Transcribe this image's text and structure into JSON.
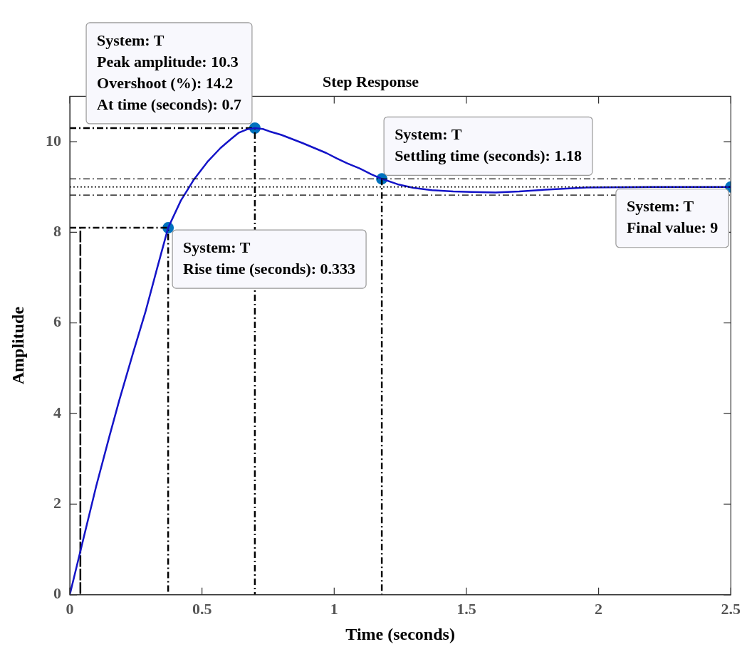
{
  "chart_data": {
    "type": "line",
    "title": "Step Response",
    "xlabel": "Time (seconds)",
    "ylabel": "Amplitude",
    "xlim": [
      0,
      2.5
    ],
    "xticks": [
      0,
      0.5,
      1,
      1.5,
      2,
      2.5
    ],
    "ylim": [
      0,
      11
    ],
    "yticks": [
      0,
      2,
      4,
      6,
      8,
      10
    ],
    "grid": false,
    "legend": false,
    "series": [
      {
        "color": "#1414c8",
        "marker": "none",
        "line_style": "solid",
        "x": [
          0,
          0.05,
          0.1,
          0.15,
          0.187,
          0.24,
          0.286,
          0.33,
          0.372,
          0.42,
          0.47,
          0.52,
          0.57,
          0.61,
          0.64,
          0.67,
          0.7,
          0.73,
          0.754,
          0.8,
          0.84,
          0.88,
          0.925,
          0.97,
          1.01,
          1.05,
          1.096,
          1.14,
          1.18,
          1.24,
          1.3,
          1.37,
          1.45,
          1.52,
          1.61,
          1.7,
          1.8,
          1.955,
          2.2,
          2.5
        ],
        "values": [
          0,
          1.2,
          2.4,
          3.5,
          4.29,
          5.35,
          6.24,
          7.2,
          8.1,
          8.7,
          9.17,
          9.55,
          9.86,
          10.06,
          10.2,
          10.27,
          10.3,
          10.28,
          10.23,
          10.15,
          10.06,
          9.97,
          9.86,
          9.75,
          9.63,
          9.52,
          9.41,
          9.28,
          9.18,
          9.06,
          8.98,
          8.93,
          8.9,
          8.89,
          8.88,
          8.9,
          8.94,
          8.99,
          9.0,
          9.0
        ]
      },
      {
        "type": "line",
        "color": "#000000",
        "marker": "none",
        "line_style": "dashed",
        "x": [
          0,
          0.04,
          0.04,
          0.04,
          0.372,
          0.372
        ],
        "values": [
          8.1,
          8.1,
          0,
          8.1,
          8.1,
          0
        ]
      },
      {
        "type": "line",
        "color": "#000000",
        "marker": "none",
        "line_style": "dashed",
        "x": [
          0,
          0.7,
          0.7
        ],
        "values": [
          10.3,
          10.3,
          0
        ]
      },
      {
        "type": "line",
        "color": "#000000",
        "marker": "none",
        "line_style": "dashed",
        "x": [
          1.18,
          1.18
        ],
        "values": [
          9.18,
          0
        ]
      },
      {
        "type": "scatter",
        "color": "#0072bd",
        "marker": "circle",
        "x": [
          0.372,
          0.7,
          1.18,
          2.5
        ],
        "values": [
          8.1,
          10.3,
          9.18,
          9.0
        ]
      }
    ],
    "ref_lines": [
      {
        "axis": "y",
        "value": 9.18,
        "color": "#000000",
        "line_style": "dashed"
      },
      {
        "axis": "y",
        "value": 9,
        "color": "#000000",
        "line_style": "dotted"
      },
      {
        "axis": "y",
        "value": 8.82,
        "color": "#000000",
        "line_style": "dashed"
      }
    ],
    "annotations": [
      {
        "text": "System: T\nRise time (seconds): 0.333",
        "x": 0.372,
        "y": 8.1
      },
      {
        "text": "System: T\nPeak amplitude: 10.3\nOvershoot (%): 14.2\nAt time (seconds): 0.7",
        "x": 0.7,
        "y": 10.3
      },
      {
        "text": "System: T\nSettling time (seconds): 1.18",
        "x": 1.18,
        "y": 9.18
      },
      {
        "text": "System: T\nFinal value: 9",
        "x": 2.5,
        "y": 9.0
      }
    ]
  }
}
